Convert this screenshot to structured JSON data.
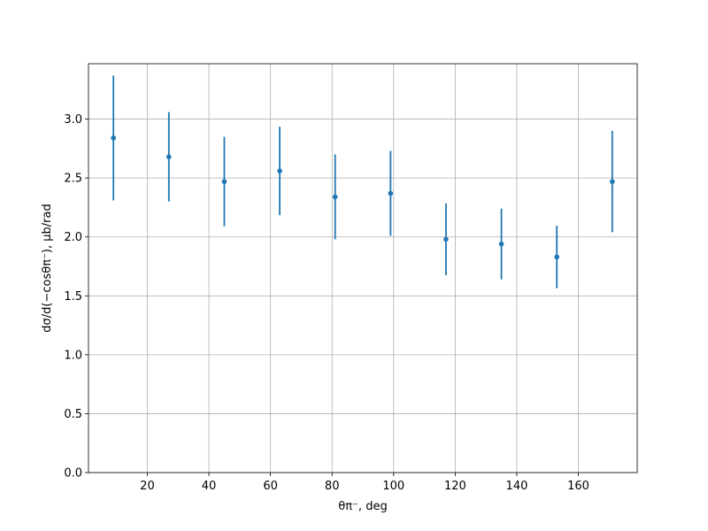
{
  "chart_data": {
    "type": "errorbar",
    "x_label": "θπ⁻, deg",
    "y_label": "dσ/d(−cosθπ⁻), μb/rad",
    "x": [
      9,
      27,
      45,
      63,
      81,
      99,
      117,
      135,
      153,
      171
    ],
    "values": [
      2.84,
      2.68,
      2.47,
      2.56,
      2.34,
      2.37,
      1.98,
      1.94,
      1.83,
      2.47
    ],
    "errors": [
      0.53,
      0.38,
      0.38,
      0.375,
      0.36,
      0.36,
      0.305,
      0.3,
      0.265,
      0.43
    ],
    "color": "#1f77b4",
    "xlim": [
      0.9,
      179.1
    ],
    "ylim": [
      0,
      3.47
    ],
    "xticks": [
      20,
      40,
      60,
      80,
      100,
      120,
      140,
      160
    ],
    "yticks": [
      {
        "value": 0,
        "label": "0.0"
      },
      {
        "value": 0.5,
        "label": "0.5"
      },
      {
        "value": 1,
        "label": "1.0"
      },
      {
        "value": 1.5,
        "label": "1.5"
      },
      {
        "value": 2,
        "label": "2.0"
      },
      {
        "value": 2.5,
        "label": "2.5"
      },
      {
        "value": 3,
        "label": "3.0"
      }
    ],
    "grid": true
  }
}
